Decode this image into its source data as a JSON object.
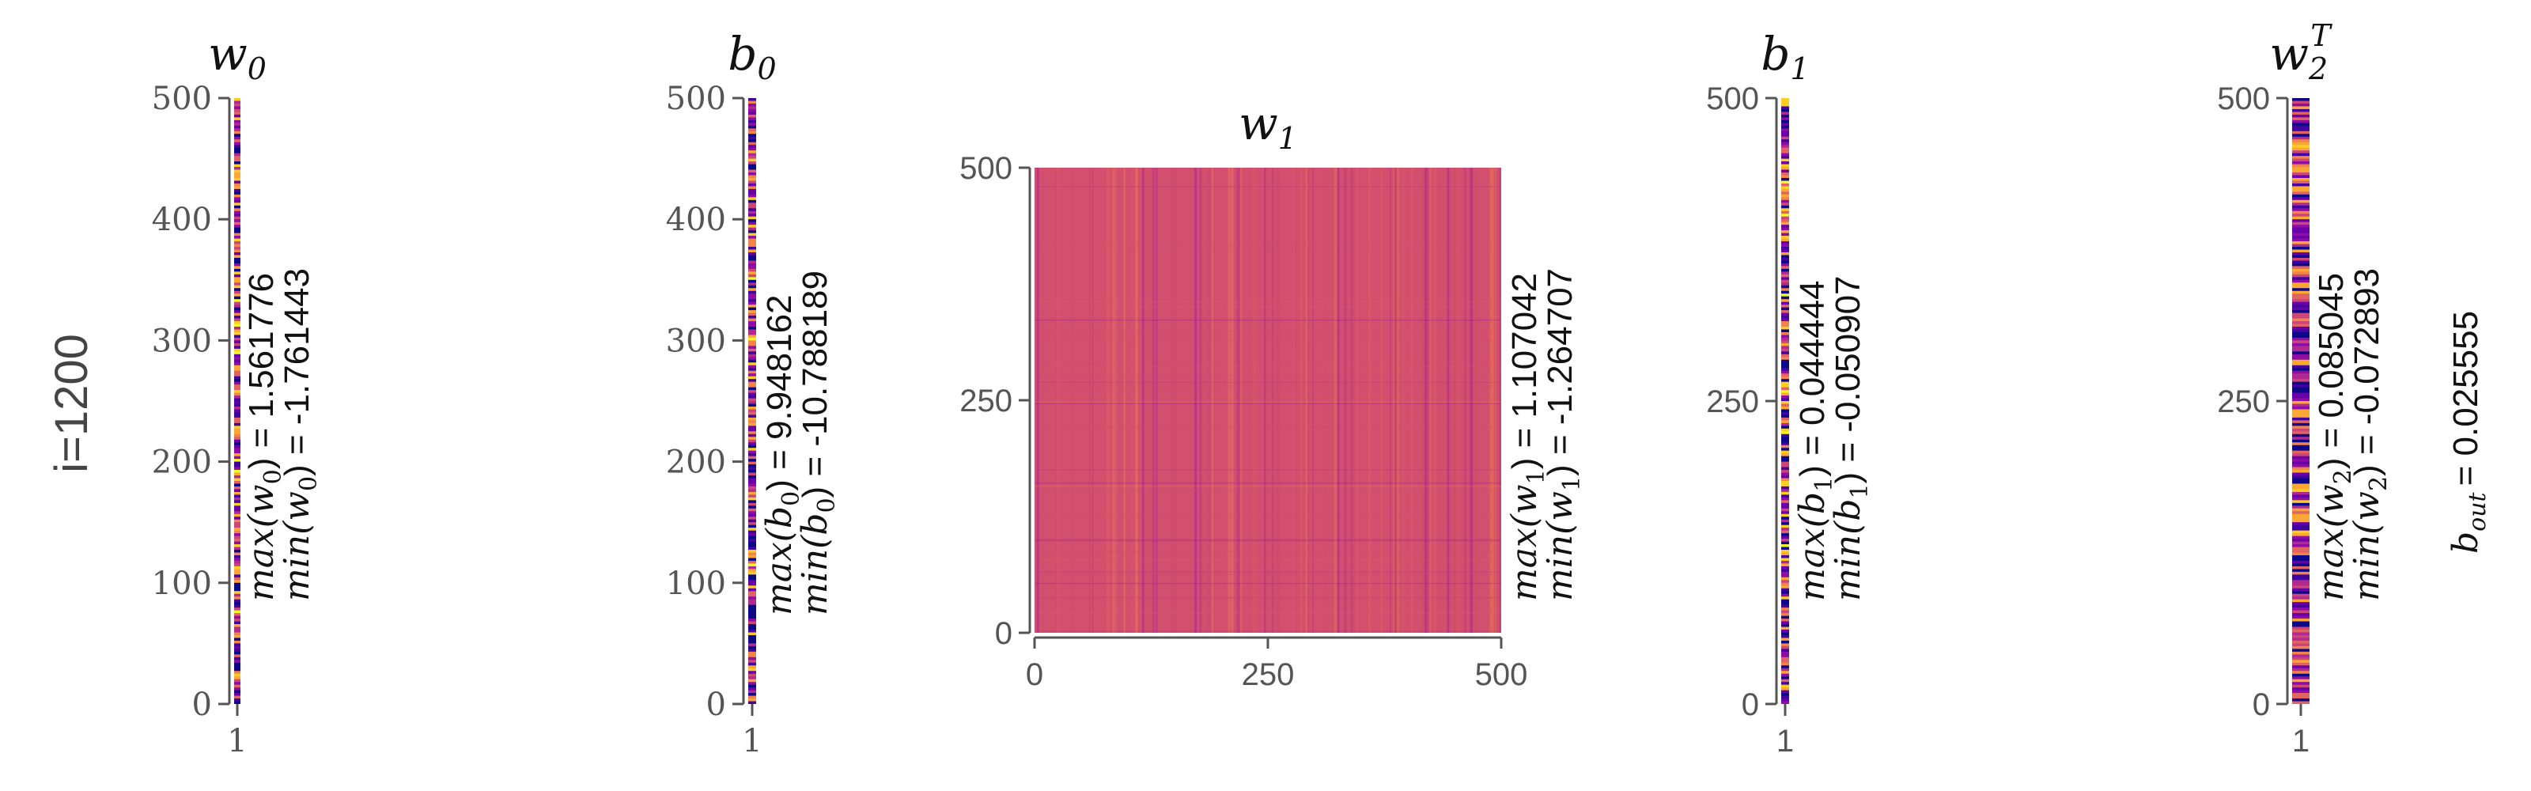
{
  "colors": {
    "colormap": "plasma",
    "w1_fill": "#d24f6d"
  },
  "iteration_label": "i=1200",
  "b_out": {
    "label": "b",
    "sub": "out",
    "value_text": "= 0.025555"
  },
  "chart_data": [
    {
      "id": "w0",
      "type": "heatmap",
      "title": "w",
      "title_sub": "0",
      "title_sup": "",
      "xticks": [
        "1"
      ],
      "yticks": [
        "0",
        "100",
        "200",
        "300",
        "400",
        "500"
      ],
      "ylim": [
        0,
        500
      ],
      "xlim": [
        0.5,
        1.5
      ],
      "rows": 500,
      "cols": 1,
      "max_label": "max(w",
      "min_label": "min(w",
      "label_sub": "0",
      "max_text": ") = 1.561776",
      "min_text": ") = -1.761443",
      "max": 1.561776,
      "min": -1.761443
    },
    {
      "id": "b0",
      "type": "heatmap",
      "title": "b",
      "title_sub": "0",
      "title_sup": "",
      "xticks": [
        "1"
      ],
      "yticks": [
        "0",
        "100",
        "200",
        "300",
        "400",
        "500"
      ],
      "ylim": [
        0,
        500
      ],
      "xlim": [
        0.5,
        1.5
      ],
      "rows": 500,
      "cols": 1,
      "max_label": "max(b",
      "min_label": "min(b",
      "label_sub": "0",
      "max_text": ") = 9.948162",
      "min_text": ") = -10.788189",
      "max": 9.948162,
      "min": -10.788189
    },
    {
      "id": "w1",
      "type": "heatmap",
      "title": "w",
      "title_sub": "1",
      "title_sup": "",
      "xticks": [
        "0",
        "250",
        "500"
      ],
      "yticks": [
        "0",
        "250",
        "500"
      ],
      "ylim": [
        0,
        500
      ],
      "xlim": [
        0,
        500
      ],
      "rows": 500,
      "cols": 500,
      "max_label": "max(w",
      "min_label": "min(w",
      "label_sub": "1",
      "max_text": ") = 1.107042",
      "min_text": ") = -1.264707",
      "max": 1.107042,
      "min": -1.264707
    },
    {
      "id": "b1",
      "type": "heatmap",
      "title": "b",
      "title_sub": "1",
      "title_sup": "",
      "xticks": [
        "1"
      ],
      "yticks": [
        "0",
        "250",
        "500"
      ],
      "ylim": [
        0,
        500
      ],
      "xlim": [
        0.5,
        1.5
      ],
      "rows": 500,
      "cols": 1,
      "max_label": "max(b",
      "min_label": "min(b",
      "label_sub": "1",
      "max_text": ") = 0.044444",
      "min_text": ") = -0.050907",
      "max": 0.044444,
      "min": -0.050907
    },
    {
      "id": "w2",
      "type": "heatmap",
      "title": "w",
      "title_sub": "2",
      "title_sup": "T",
      "xticks": [
        "1"
      ],
      "yticks": [
        "0",
        "250",
        "500"
      ],
      "ylim": [
        0,
        500
      ],
      "xlim": [
        0.5,
        1.5
      ],
      "rows": 500,
      "cols": 1,
      "max_label": "max(w",
      "min_label": "min(w",
      "label_sub": "2",
      "max_text": ") = 0.085045",
      "min_text": ") = -0.072893",
      "max": 0.085045,
      "min": -0.072893
    }
  ]
}
